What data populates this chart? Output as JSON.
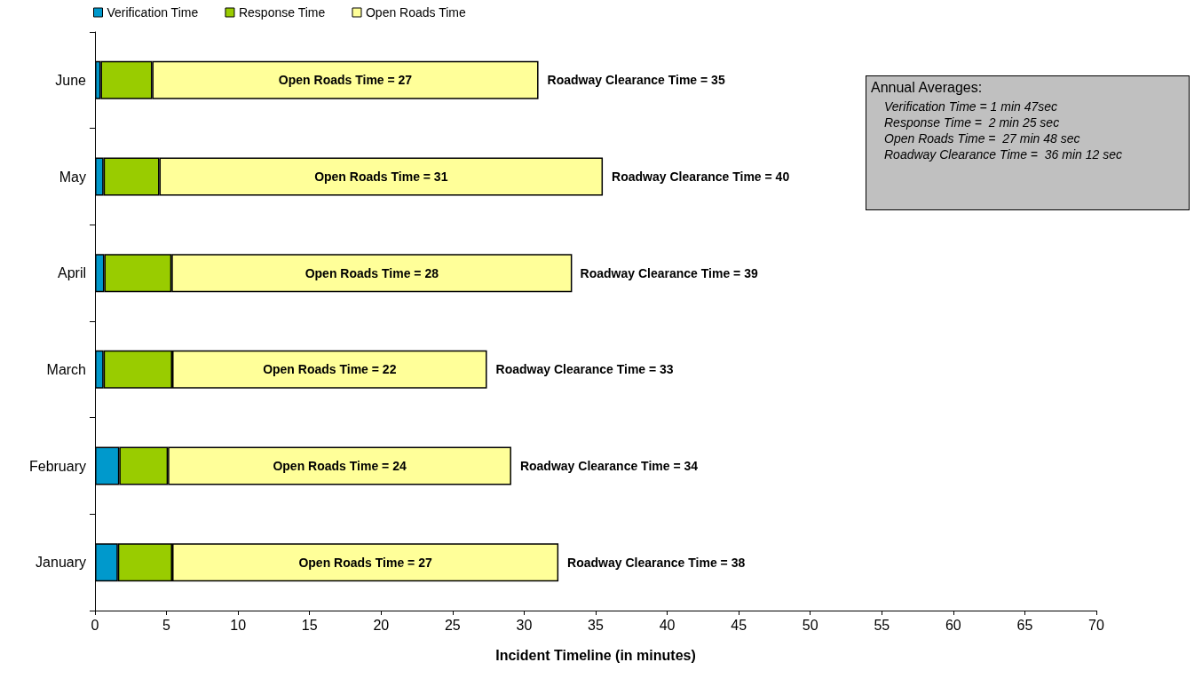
{
  "chart_data": {
    "type": "bar",
    "orientation": "horizontal",
    "stacked": true,
    "xlabel": "Incident Timeline (in minutes)",
    "categories": [
      "June",
      "May",
      "April",
      "March",
      "February",
      "January"
    ],
    "series": [
      {
        "name": "Verification Time",
        "color": "#0099cc",
        "values": [
          0.4,
          0.6,
          0.65,
          0.6,
          1.7,
          1.6
        ]
      },
      {
        "name": "Response Time",
        "color": "#99cc00",
        "values": [
          3.6,
          3.9,
          4.7,
          4.8,
          3.4,
          3.8
        ]
      },
      {
        "name": "Open Roads Time",
        "color": "#ffff99",
        "values": [
          27,
          31,
          28,
          22,
          24,
          27
        ],
        "value_labels": [
          "Open Roads Time = 27",
          "Open Roads Time = 31",
          "Open Roads Time = 28",
          "Open Roads Time = 22",
          "Open Roads Time = 24",
          "Open Roads Time = 27"
        ]
      }
    ],
    "xlim": [
      0,
      70
    ],
    "xticks": [
      0,
      5,
      10,
      15,
      20,
      25,
      30,
      35,
      40,
      45,
      50,
      55,
      60,
      65,
      70
    ],
    "grid": false,
    "legend": "top left",
    "annotations": [
      {
        "text": "Roadway Clearance Time = 35",
        "x": 31,
        "y": "June"
      },
      {
        "text": "Roadway Clearance Time = 40",
        "x": 35.5,
        "y": "May"
      },
      {
        "text": "Roadway Clearance Time = 39",
        "x": 33.3,
        "y": "April"
      },
      {
        "text": "Roadway Clearance Time = 33",
        "x": 27.4,
        "y": "March"
      },
      {
        "text": "Roadway Clearance Time = 34",
        "x": 29.1,
        "y": "February"
      },
      {
        "text": "Roadway Clearance Time = 38",
        "x": 32.4,
        "y": "January"
      },
      "Annual Averages:",
      "Verification Time = 1 min 47sec",
      "Response Time =  2 min 25 sec",
      "Open Roads Time =  27 min 48 sec",
      "Roadway Clearance Time =  36 min 12 sec"
    ]
  }
}
